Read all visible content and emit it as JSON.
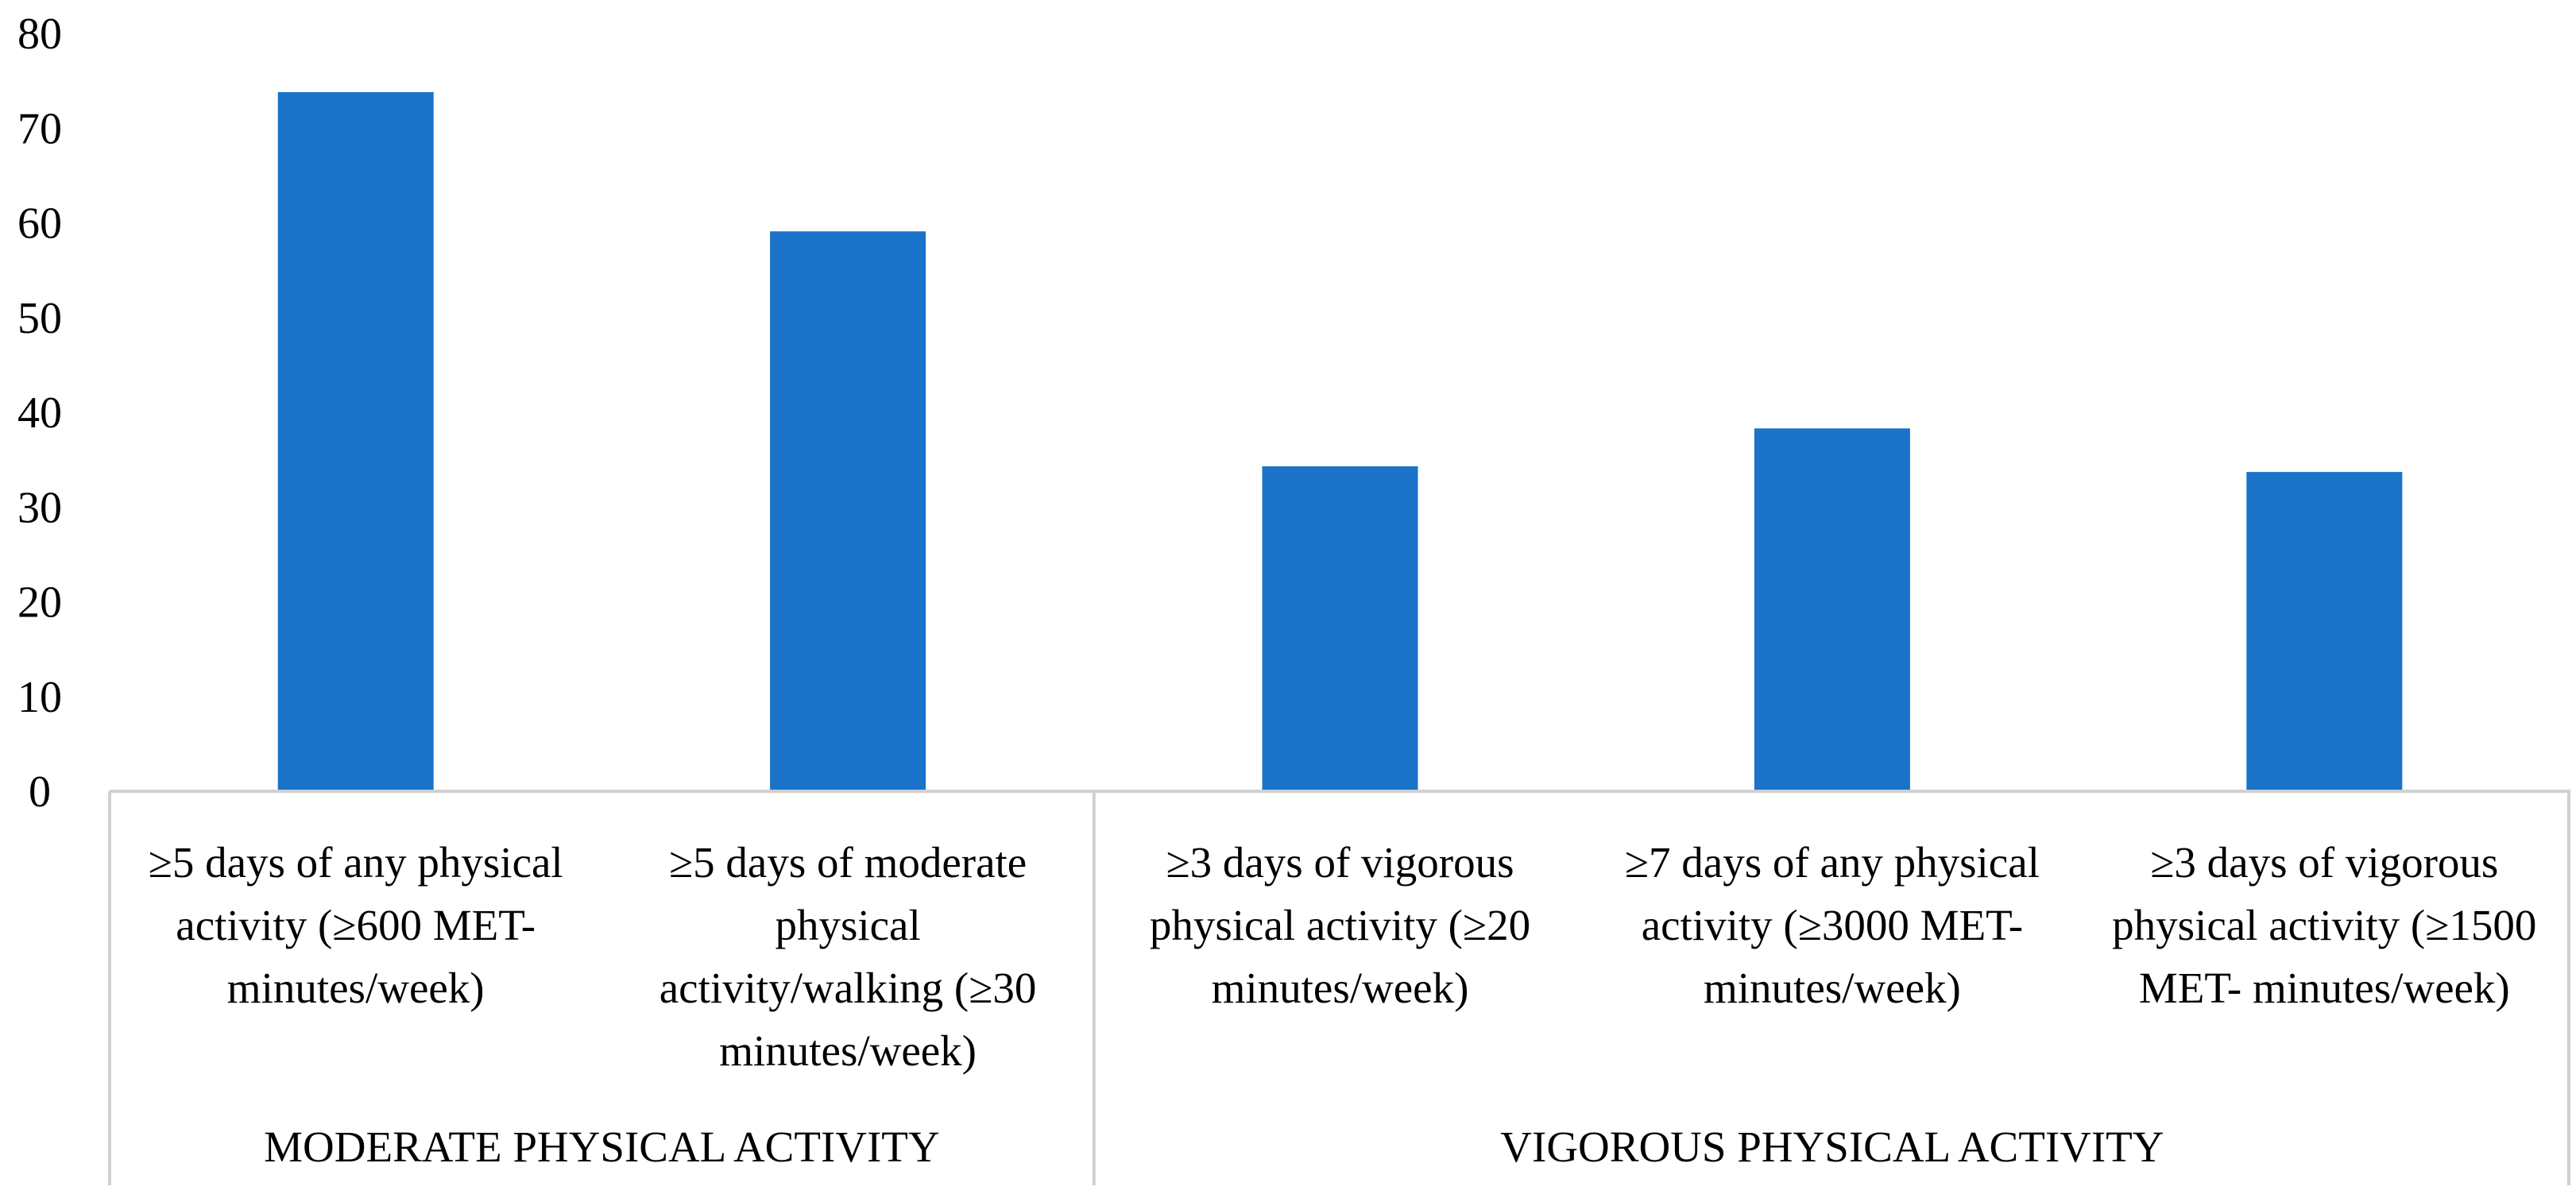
{
  "chart_data": {
    "type": "bar",
    "title": "",
    "xlabel": "",
    "ylabel": "",
    "ylim": [
      0,
      80
    ],
    "yticks": [
      0,
      10,
      20,
      30,
      40,
      50,
      60,
      70,
      80
    ],
    "grid": false,
    "categories": [
      [
        "≥5 days of any physical",
        "activity (≥600 MET-",
        "minutes/week)"
      ],
      [
        "≥5 days of moderate",
        "physical",
        "activity/walking (≥30",
        "minutes/week)"
      ],
      [
        "≥3 days of vigorous",
        "physical activity (≥20",
        "minutes/week)"
      ],
      [
        "≥7 days of any physical",
        "activity (≥3000 MET-",
        "minutes/week)"
      ],
      [
        "≥3 days of vigorous",
        "physical activity (≥1500",
        "MET- minutes/week)"
      ]
    ],
    "values": [
      73.8,
      59.1,
      34.3,
      38.3,
      33.7
    ],
    "groups": [
      {
        "label": "MODERATE PHYSICAL ACTIVITY",
        "span": 2
      },
      {
        "label": "VIGOROUS PHYSICAL ACTIVITY",
        "span": 3
      }
    ],
    "bar_color": "#1a73c9",
    "axis_color": "#d0d0d0"
  }
}
